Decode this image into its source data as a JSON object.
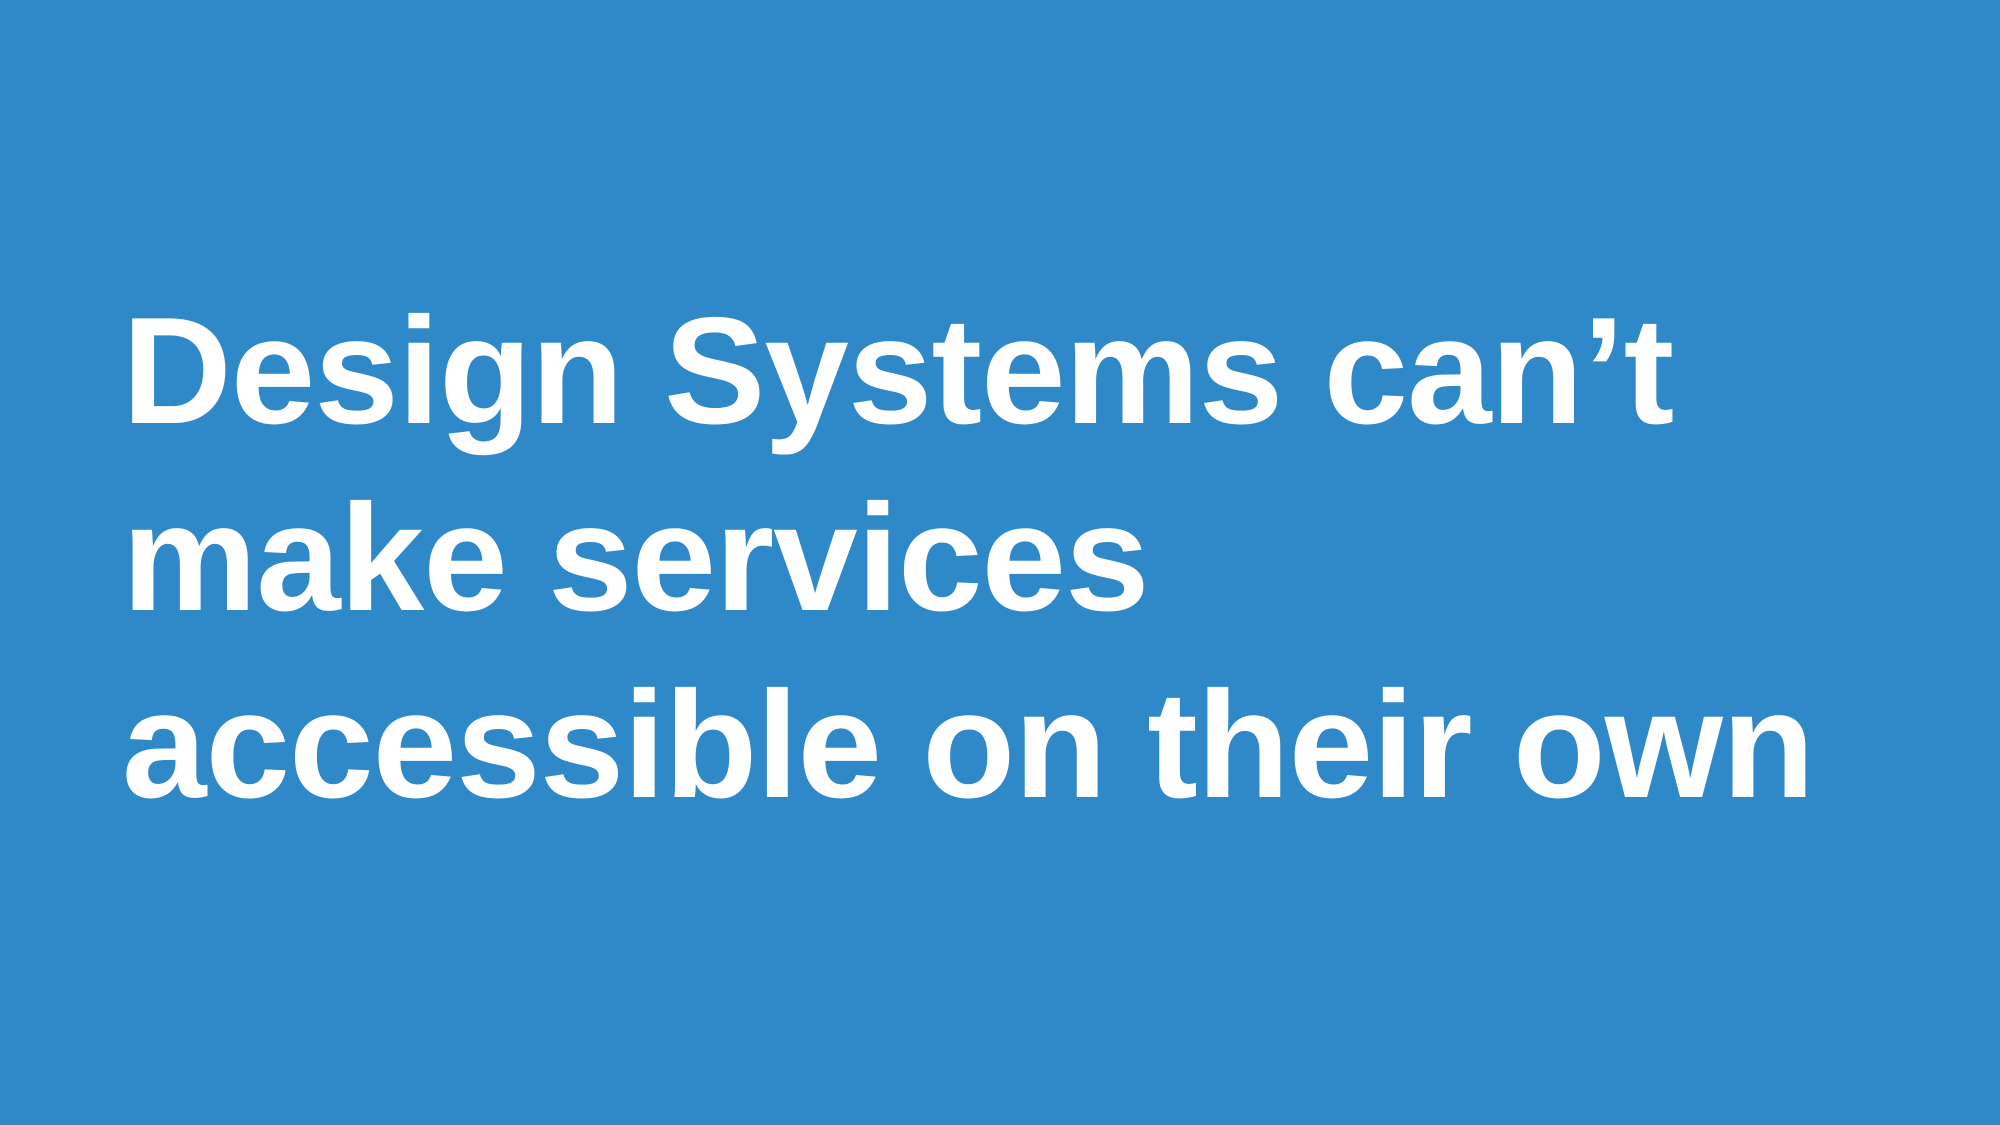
{
  "slide": {
    "background_color": "#2f89c9",
    "text_color": "#ffffff",
    "headline_lines": [
      "Design Systems can’t",
      "make services",
      "accessible on their own"
    ]
  }
}
